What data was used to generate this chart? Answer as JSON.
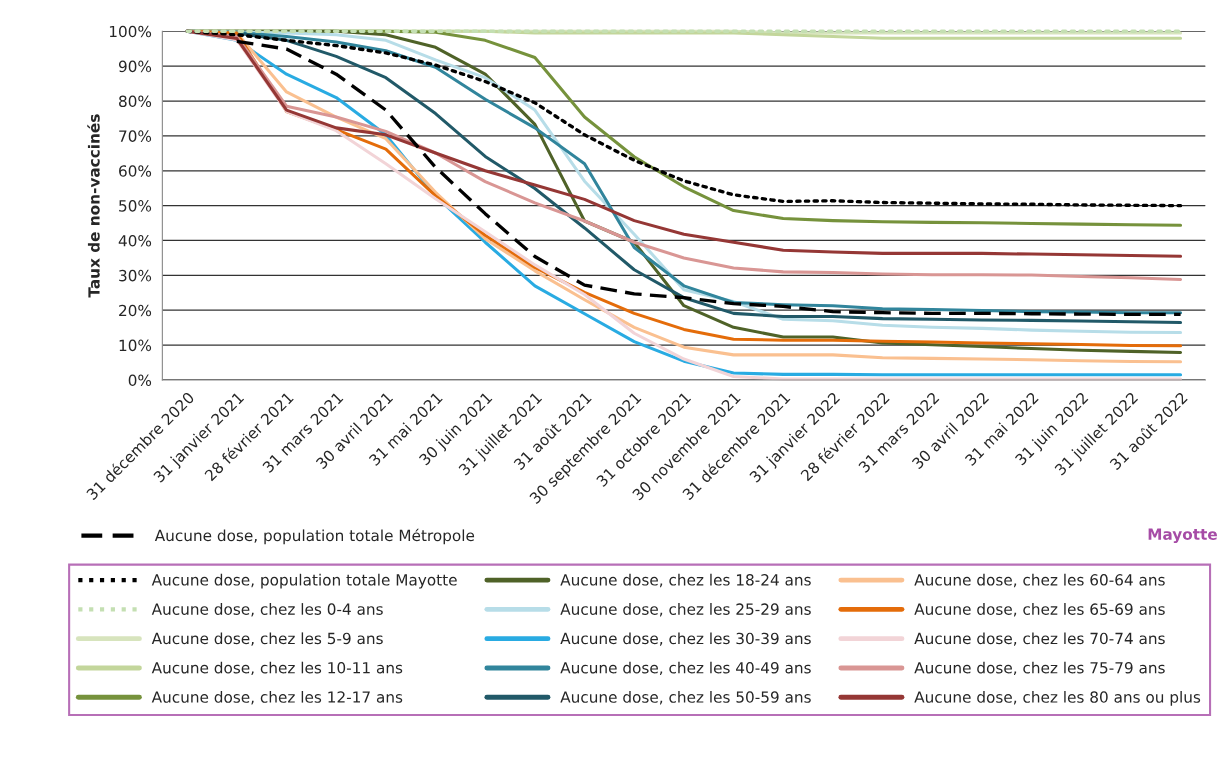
{
  "chart_data": {
    "type": "line",
    "ylabel": "Taux de non-vaccinés",
    "categories": [
      "31 décembre 2020",
      "31 janvier 2021",
      "28 février 2021",
      "31 mars 2021",
      "30 avril 2021",
      "31 mai 2021",
      "30 juin 2021",
      "31 juillet 2021",
      "31 août 2021",
      "30 septembre 2021",
      "31 octobre 2021",
      "30 novembre 2021",
      "31 décembre 2021",
      "31 janvier 2022",
      "28 février 2022",
      "31 mars 2022",
      "30 avril 2022",
      "31 mai 2022",
      "31 juin 2022",
      "31 juillet 2022",
      "31 août 2022"
    ],
    "ylim": [
      0,
      100
    ],
    "yticks": [
      {
        "value": 0,
        "label": "0%"
      },
      {
        "value": 10,
        "label": "10%"
      },
      {
        "value": 20,
        "label": "20%"
      },
      {
        "value": 30,
        "label": "30%"
      },
      {
        "value": 40,
        "label": "40%"
      },
      {
        "value": 50,
        "label": "50%"
      },
      {
        "value": 60,
        "label": "60%"
      },
      {
        "value": 70,
        "label": "70%"
      },
      {
        "value": 80,
        "label": "80%"
      },
      {
        "value": 90,
        "label": "90%"
      },
      {
        "value": 100,
        "label": "100%"
      }
    ],
    "grid": "y",
    "legend": "bottom",
    "marker": "none",
    "annotations": [
      "Mayotte"
    ],
    "series": [
      {
        "name": "Aucune dose, population totale Métropole",
        "color": "#000000",
        "line_style": "dashed",
        "values": [
          null,
          97.1,
          94.9,
          87.7,
          77.4,
          61,
          47.7,
          35.4,
          27.2,
          24.7,
          23.6,
          21.9,
          21.1,
          19.6,
          19.3,
          19.1,
          19.1,
          19,
          18.9,
          18.8,
          18.8
        ]
      },
      {
        "name": "Aucune dose, population totale Mayotte",
        "color": "#000000",
        "line_style": "dotted",
        "values": [
          100,
          99,
          97.4,
          95.9,
          93.8,
          90.3,
          85.6,
          79.5,
          70.3,
          63,
          57.1,
          53.1,
          51.2,
          51.4,
          50.9,
          50.7,
          50.5,
          50.4,
          50.2,
          50.1,
          50
        ]
      },
      {
        "name": "Aucune dose, chez les 0-4 ans",
        "color": "#c4dfb2",
        "line_style": "dotted",
        "values": [
          100,
          100,
          100,
          100,
          100,
          100,
          100,
          100,
          100,
          100,
          100,
          100,
          100,
          100,
          100,
          100,
          100,
          100,
          100,
          100,
          100
        ]
      },
      {
        "name": "Aucune dose, chez les 5-9 ans",
        "color": "#d7e4bd",
        "line_style": "solid",
        "values": [
          100,
          100,
          100,
          100,
          100,
          100,
          100,
          100,
          100,
          100,
          100,
          100,
          99.5,
          99.5,
          99.5,
          99.5,
          99.5,
          99.5,
          99.5,
          99.5,
          99.5
        ]
      },
      {
        "name": "Aucune dose, chez les 10-11 ans",
        "color": "#c3d69b",
        "line_style": "solid",
        "values": [
          100,
          100,
          100,
          100,
          100,
          100,
          100,
          99.5,
          99.5,
          99.5,
          99.5,
          99.5,
          99,
          98.5,
          98,
          98,
          98,
          98,
          98,
          98,
          98
        ]
      },
      {
        "name": "Aucune dose, chez les 12-17 ans",
        "color": "#76923c",
        "line_style": "solid",
        "values": [
          100,
          100,
          100,
          100,
          100,
          99.7,
          97.4,
          92.5,
          75.4,
          64,
          55.4,
          48.6,
          46.3,
          45.7,
          45.4,
          45.2,
          45.1,
          44.9,
          44.7,
          44.5,
          44.4
        ]
      },
      {
        "name": "Aucune dose, chez les 18-24 ans",
        "color": "#4f6228",
        "line_style": "solid",
        "values": [
          100,
          100,
          100,
          100,
          99,
          95.4,
          87.7,
          73.3,
          45.6,
          39.5,
          21.3,
          15.1,
          12.3,
          12.3,
          10.6,
          10.1,
          9.6,
          9,
          8.5,
          8.2,
          7.9
        ]
      },
      {
        "name": "Aucune dose, chez les 25-29 ans",
        "color": "#b7dde8",
        "line_style": "solid",
        "values": [
          100,
          99.8,
          99.5,
          99,
          97.4,
          91.8,
          86.7,
          77.4,
          57,
          41.8,
          25.9,
          22.5,
          17.4,
          17,
          15.7,
          15.1,
          14.8,
          14.3,
          14,
          13.7,
          13.6
        ]
      },
      {
        "name": "Aucune dose, chez les 30-39 ans",
        "color": "#29abe2",
        "line_style": "solid",
        "values": [
          100,
          97.4,
          87.7,
          81,
          70.3,
          52.8,
          39.5,
          27,
          19,
          11,
          5.4,
          2,
          1.6,
          1.6,
          1.5,
          1.5,
          1.5,
          1.5,
          1.5,
          1.5,
          1.5
        ]
      },
      {
        "name": "Aucune dose, chez les 40-49 ans",
        "color": "#31859c",
        "line_style": "solid",
        "values": [
          100,
          99.7,
          98.5,
          96.9,
          94.4,
          89.7,
          80.5,
          72.3,
          62,
          38,
          27,
          22.2,
          21.6,
          21.3,
          20.4,
          20.2,
          19.9,
          19.6,
          19.5,
          19.3,
          19.3
        ]
      },
      {
        "name": "Aucune dose, chez les 50-59 ans",
        "color": "#215968",
        "line_style": "solid",
        "values": [
          100,
          99.5,
          97.4,
          92.8,
          86.7,
          76.4,
          64.1,
          54.9,
          43.6,
          31.6,
          23.6,
          19.1,
          18.2,
          18.2,
          17.6,
          17.4,
          17.2,
          17.1,
          16.9,
          16.7,
          16.5
        ]
      },
      {
        "name": "Aucune dose, chez les 60-64 ans",
        "color": "#fac090",
        "line_style": "solid",
        "values": [
          100,
          99.5,
          82.6,
          75.4,
          69.2,
          53.8,
          40.5,
          31.3,
          23,
          15.1,
          9.4,
          7.2,
          7.2,
          7.2,
          6.4,
          6.2,
          6,
          5.8,
          5.5,
          5.3,
          5.2
        ]
      },
      {
        "name": "Aucune dose, chez les 65-69 ans",
        "color": "#e46c0a",
        "line_style": "solid",
        "values": [
          100,
          99.5,
          77,
          71.8,
          66.2,
          52.8,
          41.5,
          32.3,
          25.1,
          19.1,
          14.5,
          11.7,
          11.4,
          11.4,
          11.1,
          10.9,
          10.6,
          10.4,
          10.2,
          9.9,
          9.8
        ]
      },
      {
        "name": "Aucune dose, chez les 70-74 ans",
        "color": "#f2d4d7",
        "line_style": "solid",
        "values": [
          100,
          97.5,
          77,
          71.5,
          62,
          52,
          42.5,
          33,
          24.5,
          13.4,
          6,
          1,
          0.3,
          0.3,
          0.3,
          0.3,
          0.3,
          0.3,
          0.3,
          0.3,
          0.3
        ]
      },
      {
        "name": "Aucune dose, chez les 75-79 ans",
        "color": "#d99694",
        "line_style": "solid",
        "values": [
          100,
          98.5,
          78.5,
          75.4,
          71.3,
          65.1,
          56.9,
          50.8,
          45.6,
          39.5,
          35,
          32.1,
          31,
          30.8,
          30.4,
          30.2,
          30.2,
          30.1,
          29.7,
          29.3,
          28.8
        ]
      },
      {
        "name": "Aucune dose, chez les 80 ans ou plus",
        "color": "#953735",
        "line_style": "solid",
        "values": [
          100,
          97.9,
          77.4,
          72.3,
          70.3,
          65.1,
          60,
          55.9,
          51.8,
          45.7,
          41.8,
          39.5,
          37.2,
          36.7,
          36.3,
          36.3,
          36.3,
          36.1,
          35.9,
          35.7,
          35.5
        ]
      }
    ]
  }
}
